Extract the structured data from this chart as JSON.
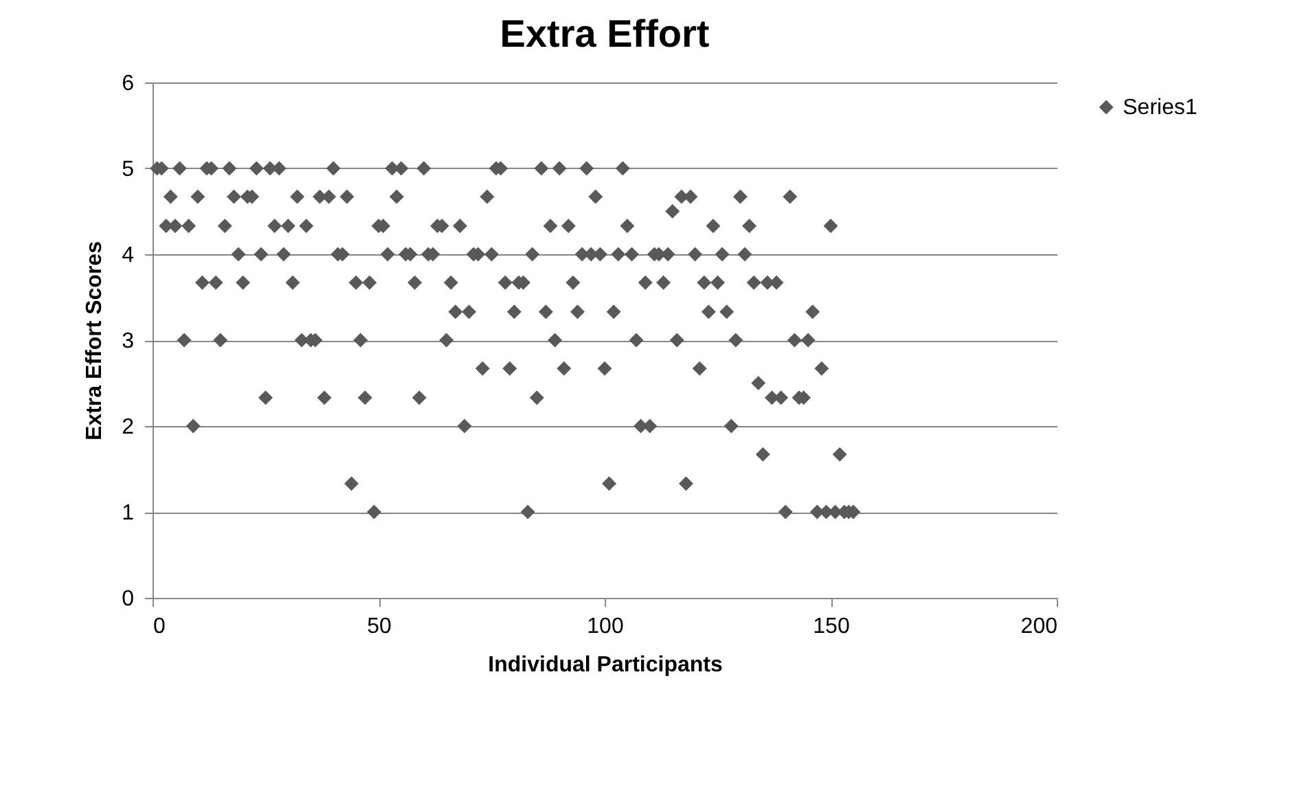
{
  "chart_data": {
    "type": "scatter",
    "title": "Extra Effort",
    "xlabel": "Individual Participants",
    "ylabel": "Extra Effort Scores",
    "x": [
      1,
      2,
      3,
      4,
      5,
      6,
      7,
      8,
      9,
      10,
      11,
      12,
      13,
      14,
      15,
      16,
      17,
      18,
      19,
      20,
      21,
      22,
      23,
      24,
      25,
      26,
      27,
      28,
      29,
      30,
      31,
      32,
      33,
      34,
      35,
      36,
      37,
      38,
      39,
      40,
      41,
      42,
      43,
      44,
      45,
      46,
      47,
      48,
      49,
      50,
      51,
      52,
      53,
      54,
      55,
      56,
      57,
      58,
      59,
      60,
      61,
      62,
      63,
      64,
      65,
      66,
      67,
      68,
      69,
      70,
      71,
      72,
      73,
      74,
      75,
      76,
      77,
      78,
      79,
      80,
      81,
      82,
      83,
      84,
      85,
      86,
      87,
      88,
      89,
      90,
      91,
      92,
      93,
      94,
      95,
      96,
      97,
      98,
      99,
      100,
      101,
      102,
      103,
      104,
      105,
      106,
      107,
      108,
      109,
      110,
      111,
      112,
      113,
      114,
      115,
      116,
      117,
      118,
      119,
      120,
      121,
      122,
      123,
      124,
      125,
      126,
      127,
      128,
      129,
      130,
      131,
      132,
      133,
      134,
      135,
      136,
      137,
      138,
      139,
      140,
      141,
      142,
      143,
      144,
      145,
      146,
      147,
      148,
      149,
      150,
      151,
      152,
      153,
      154,
      155
    ],
    "series": [
      {
        "name": "Series1",
        "color": "#595959",
        "values": [
          5,
          5,
          4.33,
          4.67,
          4.33,
          5,
          3,
          4.33,
          2,
          4.67,
          3.67,
          5,
          5,
          3.67,
          3,
          4.33,
          5,
          4.67,
          4,
          3.67,
          4.67,
          4.67,
          5,
          4,
          2.33,
          5,
          4.33,
          5,
          4,
          4.33,
          3.67,
          4.67,
          3,
          4.33,
          3,
          3,
          4.67,
          2.33,
          4.67,
          5,
          4,
          4,
          4.67,
          1.33,
          3.67,
          3,
          2.33,
          3.67,
          1,
          4.33,
          4.33,
          4,
          5,
          4.67,
          5,
          4,
          4,
          3.67,
          2.33,
          5,
          4,
          4,
          4.33,
          4.33,
          3,
          3.67,
          3.33,
          4.33,
          2,
          3.33,
          4,
          4,
          2.67,
          4.67,
          4,
          5,
          5,
          3.67,
          2.67,
          3.33,
          3.67,
          3.67,
          1,
          4,
          2.33,
          5,
          3.33,
          4.33,
          3,
          5,
          2.67,
          4.33,
          3.67,
          3.33,
          4,
          5,
          4,
          4.67,
          4,
          2.67,
          1.33,
          3.33,
          4,
          5,
          4.33,
          4,
          3,
          2,
          3.67,
          2,
          4,
          4,
          3.67,
          4,
          4.5,
          3,
          4.67,
          1.33,
          4.67,
          4,
          2.67,
          3.67,
          3.33,
          4.33,
          3.67,
          4,
          3.33,
          2,
          3,
          4.67,
          4,
          4.33,
          3.67,
          2.5,
          1.67,
          3.67,
          2.33,
          3.67,
          2.33,
          1,
          4.67,
          3,
          2.33,
          2.33,
          3,
          3.33,
          1,
          2.67,
          1,
          4.33,
          1,
          1.67,
          1,
          1,
          1
        ]
      }
    ],
    "xlim": [
      0,
      200
    ],
    "xticks": [
      0,
      50,
      100,
      150,
      200
    ],
    "ylim": [
      0,
      6
    ],
    "yticks": [
      0,
      1,
      2,
      3,
      4,
      5,
      6
    ],
    "grid": "y",
    "legend": "right",
    "marker": "diamond"
  }
}
